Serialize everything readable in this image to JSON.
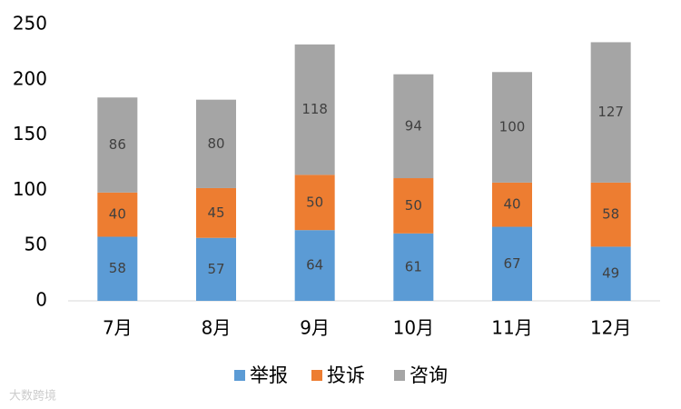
{
  "chart_data": {
    "type": "stacked_bar",
    "categories": [
      "7月",
      "8月",
      "9月",
      "10月",
      "11月",
      "12月"
    ],
    "series": [
      {
        "name": "举报",
        "color": "#5b9bd5",
        "values": [
          58,
          57,
          64,
          61,
          67,
          49
        ]
      },
      {
        "name": "投诉",
        "color": "#ed7d31",
        "values": [
          40,
          45,
          50,
          50,
          40,
          58
        ]
      },
      {
        "name": "咨询",
        "color": "#a5a5a5",
        "values": [
          86,
          80,
          118,
          94,
          100,
          127
        ]
      }
    ],
    "ylim": [
      0,
      250
    ],
    "yticks": [
      0,
      50,
      100,
      150,
      200,
      250
    ],
    "grid": false,
    "legend": "bottom",
    "watermark": "大数跨境"
  }
}
